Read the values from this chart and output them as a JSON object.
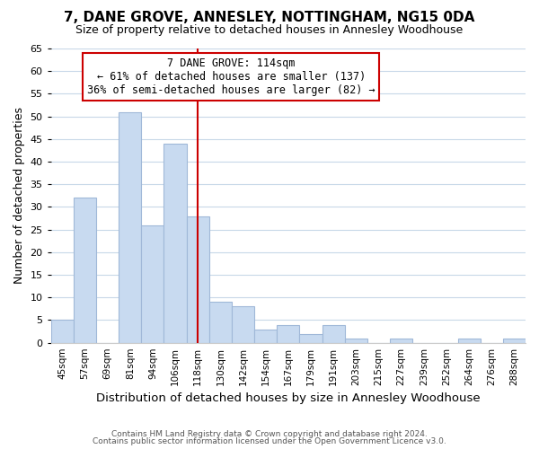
{
  "title": "7, DANE GROVE, ANNESLEY, NOTTINGHAM, NG15 0DA",
  "subtitle": "Size of property relative to detached houses in Annesley Woodhouse",
  "xlabel": "Distribution of detached houses by size in Annesley Woodhouse",
  "ylabel": "Number of detached properties",
  "footer1": "Contains HM Land Registry data © Crown copyright and database right 2024.",
  "footer2": "Contains public sector information licensed under the Open Government Licence v3.0.",
  "bin_labels": [
    "45sqm",
    "57sqm",
    "69sqm",
    "81sqm",
    "94sqm",
    "106sqm",
    "118sqm",
    "130sqm",
    "142sqm",
    "154sqm",
    "167sqm",
    "179sqm",
    "191sqm",
    "203sqm",
    "215sqm",
    "227sqm",
    "239sqm",
    "252sqm",
    "264sqm",
    "276sqm",
    "288sqm"
  ],
  "bar_heights": [
    5,
    32,
    0,
    51,
    26,
    44,
    28,
    9,
    8,
    3,
    4,
    2,
    4,
    1,
    0,
    1,
    0,
    0,
    1,
    0,
    1
  ],
  "bar_color": "#c8daf0",
  "bar_edgecolor": "#a0b8d8",
  "vline_x_index": 6,
  "vline_color": "#cc0000",
  "ylim": [
    0,
    65
  ],
  "yticks": [
    0,
    5,
    10,
    15,
    20,
    25,
    30,
    35,
    40,
    45,
    50,
    55,
    60,
    65
  ],
  "annotation_title": "7 DANE GROVE: 114sqm",
  "annotation_line1": "← 61% of detached houses are smaller (137)",
  "annotation_line2": "36% of semi-detached houses are larger (82) →",
  "annotation_box_color": "#ffffff",
  "annotation_box_edgecolor": "#cc0000",
  "background_color": "#ffffff",
  "grid_color": "#c8d8e8"
}
